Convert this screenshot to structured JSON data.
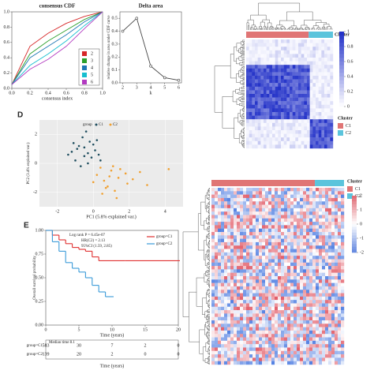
{
  "chart_data": [
    {
      "type": "line",
      "title": "consensus CDF",
      "xlabel": "consensus index",
      "x": [
        0,
        0.2,
        0.4,
        0.6,
        0.8,
        1.0
      ],
      "series": [
        {
          "name": "2",
          "color": "#d62728",
          "values": [
            0.05,
            0.55,
            0.72,
            0.85,
            0.94,
            1.0
          ]
        },
        {
          "name": "3",
          "color": "#2ca02c",
          "values": [
            0.05,
            0.45,
            0.62,
            0.76,
            0.9,
            1.0
          ]
        },
        {
          "name": "4",
          "color": "#1f77b4",
          "values": [
            0.05,
            0.4,
            0.55,
            0.7,
            0.87,
            1.0
          ]
        },
        {
          "name": "5",
          "color": "#17becf",
          "values": [
            0.05,
            0.3,
            0.45,
            0.62,
            0.82,
            1.0
          ]
        },
        {
          "name": "6",
          "color": "#b23ac0",
          "values": [
            0.05,
            0.25,
            0.38,
            0.55,
            0.78,
            1.0
          ]
        }
      ],
      "xlim": [
        0,
        1
      ],
      "ylim": [
        0,
        1
      ],
      "xticks": [
        {
          "value": 0,
          "label": "0.0"
        },
        0.2,
        0.4,
        0.6,
        0.8,
        {
          "value": 1,
          "label": "1.0"
        }
      ],
      "yticks": [
        {
          "value": 0,
          "label": "0.0"
        },
        0.2,
        0.4,
        0.6,
        0.8,
        {
          "value": 1,
          "label": "1.0"
        }
      ]
    },
    {
      "type": "line",
      "title": "Delta area",
      "xlabel": "k",
      "ylabel": "relative change in area under CDF curve",
      "x": [
        2,
        3,
        4,
        5,
        6
      ],
      "series": [
        {
          "name": "delta",
          "color": "#444444",
          "values": [
            0.4,
            0.5,
            0.13,
            0.04,
            0.02
          ]
        }
      ],
      "xlim": [
        1.8,
        6.2
      ],
      "ylim": [
        0,
        0.55
      ],
      "xticks": [
        2,
        3,
        4,
        5,
        6
      ],
      "yticks": [
        {
          "value": 0,
          "label": "0.0"
        },
        0.1,
        0.2,
        0.3,
        0.4,
        0.5
      ]
    },
    {
      "type": "heatmap",
      "panel": "B",
      "legend_title": "Cluster",
      "clusters": [
        {
          "name": "C1",
          "color": "#e07575"
        },
        {
          "name": "C2",
          "color": "#5bc4dc"
        }
      ],
      "colorlim": [
        0,
        1
      ],
      "colorticks": [
        0,
        0.2,
        0.4,
        0.6,
        0.8,
        1
      ]
    },
    {
      "type": "scatter",
      "panel": "D",
      "legend_title": "group",
      "xlabel": "PC1 (5.8% explained var.)",
      "ylabel": "PC2 (3.4% explained var.)",
      "series": [
        {
          "name": "C1",
          "color": "#1f4e5f",
          "x": [
            -1.2,
            -0.8,
            -0.5,
            -0.2,
            0.1,
            -1.0,
            -0.6,
            -0.3,
            0.3,
            -0.9,
            -0.4,
            0.0,
            -0.7,
            -1.4,
            0.2,
            -0.1,
            -0.5,
            -1.1,
            0.4,
            -0.3
          ],
          "values": [
            0.8,
            1.2,
            0.5,
            1.5,
            0.9,
            0.2,
            1.8,
            0.0,
            0.6,
            1.0,
            2.2,
            1.3,
            -0.2,
            0.6,
            1.6,
            0.4,
            1.1,
            1.4,
            0.2,
            0.7
          ]
        },
        {
          "name": "C2",
          "color": "#f0a030",
          "x": [
            0.2,
            0.6,
            1.0,
            1.4,
            0.8,
            0.4,
            1.8,
            1.2,
            0.0,
            2.2,
            0.9,
            1.5,
            3.0,
            0.5,
            1.1,
            2.6,
            0.7,
            1.9,
            4.2,
            1.3
          ],
          "values": [
            -0.8,
            -1.2,
            -0.5,
            -1.0,
            -1.6,
            -0.3,
            -0.7,
            -1.9,
            -1.3,
            -1.1,
            -0.9,
            -0.4,
            -1.5,
            -2.1,
            -0.2,
            -0.6,
            -1.7,
            -1.4,
            -0.4,
            -2.4
          ]
        }
      ],
      "xlim": [
        -3,
        5
      ],
      "ylim": [
        -3,
        3
      ],
      "xticks": [
        -2,
        0,
        2,
        4
      ],
      "yticks": [
        -2,
        0,
        2
      ]
    },
    {
      "type": "heatmap",
      "panel": "C",
      "legend_title": "Cluster",
      "clusters": [
        {
          "name": "C1",
          "color": "#e07575"
        },
        {
          "name": "C2",
          "color": "#5bc4dc"
        }
      ],
      "colorlim": [
        -2,
        2
      ],
      "colorticks": [
        2,
        1,
        0,
        -1,
        -2
      ]
    },
    {
      "type": "survival",
      "panel": "E",
      "xlabel": "Time (years)",
      "ylabel": "Overall survival probability",
      "annotations": [
        "Log rank P = 6.45e-07",
        "HR(C2) = 2.13",
        "95%CI (1.59, 2.85)",
        "Median time 8.1"
      ],
      "series": [
        {
          "name": "group=C1",
          "color": "#e03030",
          "x": [
            0,
            1,
            2,
            3,
            4,
            5,
            6,
            7,
            8,
            10,
            12,
            20
          ],
          "values": [
            1,
            0.95,
            0.9,
            0.86,
            0.82,
            0.8,
            0.78,
            0.72,
            0.68,
            0.68,
            0.68,
            0.68
          ]
        },
        {
          "name": "group=C2",
          "color": "#3a9ad8",
          "x": [
            0,
            1,
            2,
            3,
            4,
            5,
            6,
            7,
            8,
            9,
            10
          ],
          "values": [
            1,
            0.88,
            0.78,
            0.66,
            0.6,
            0.56,
            0.5,
            0.42,
            0.35,
            0.3,
            0.3
          ]
        }
      ],
      "xlim": [
        0,
        20
      ],
      "ylim": [
        0,
        1
      ],
      "xticks": [
        0,
        5,
        10,
        15,
        20
      ],
      "yticks": [
        {
          "value": 0,
          "label": "0.00"
        },
        {
          "value": 0.25,
          "label": "0.25"
        },
        {
          "value": 0.5,
          "label": "0.50"
        },
        {
          "value": 0.75,
          "label": "0.75"
        },
        {
          "value": 1,
          "label": "1.00"
        }
      ],
      "risk_table": [
        {
          "name": "group=C1",
          "values": [
            583,
            30,
            7,
            2,
            0
          ]
        },
        {
          "name": "group=C2",
          "values": [
            139,
            20,
            2,
            0,
            0
          ]
        }
      ]
    }
  ]
}
